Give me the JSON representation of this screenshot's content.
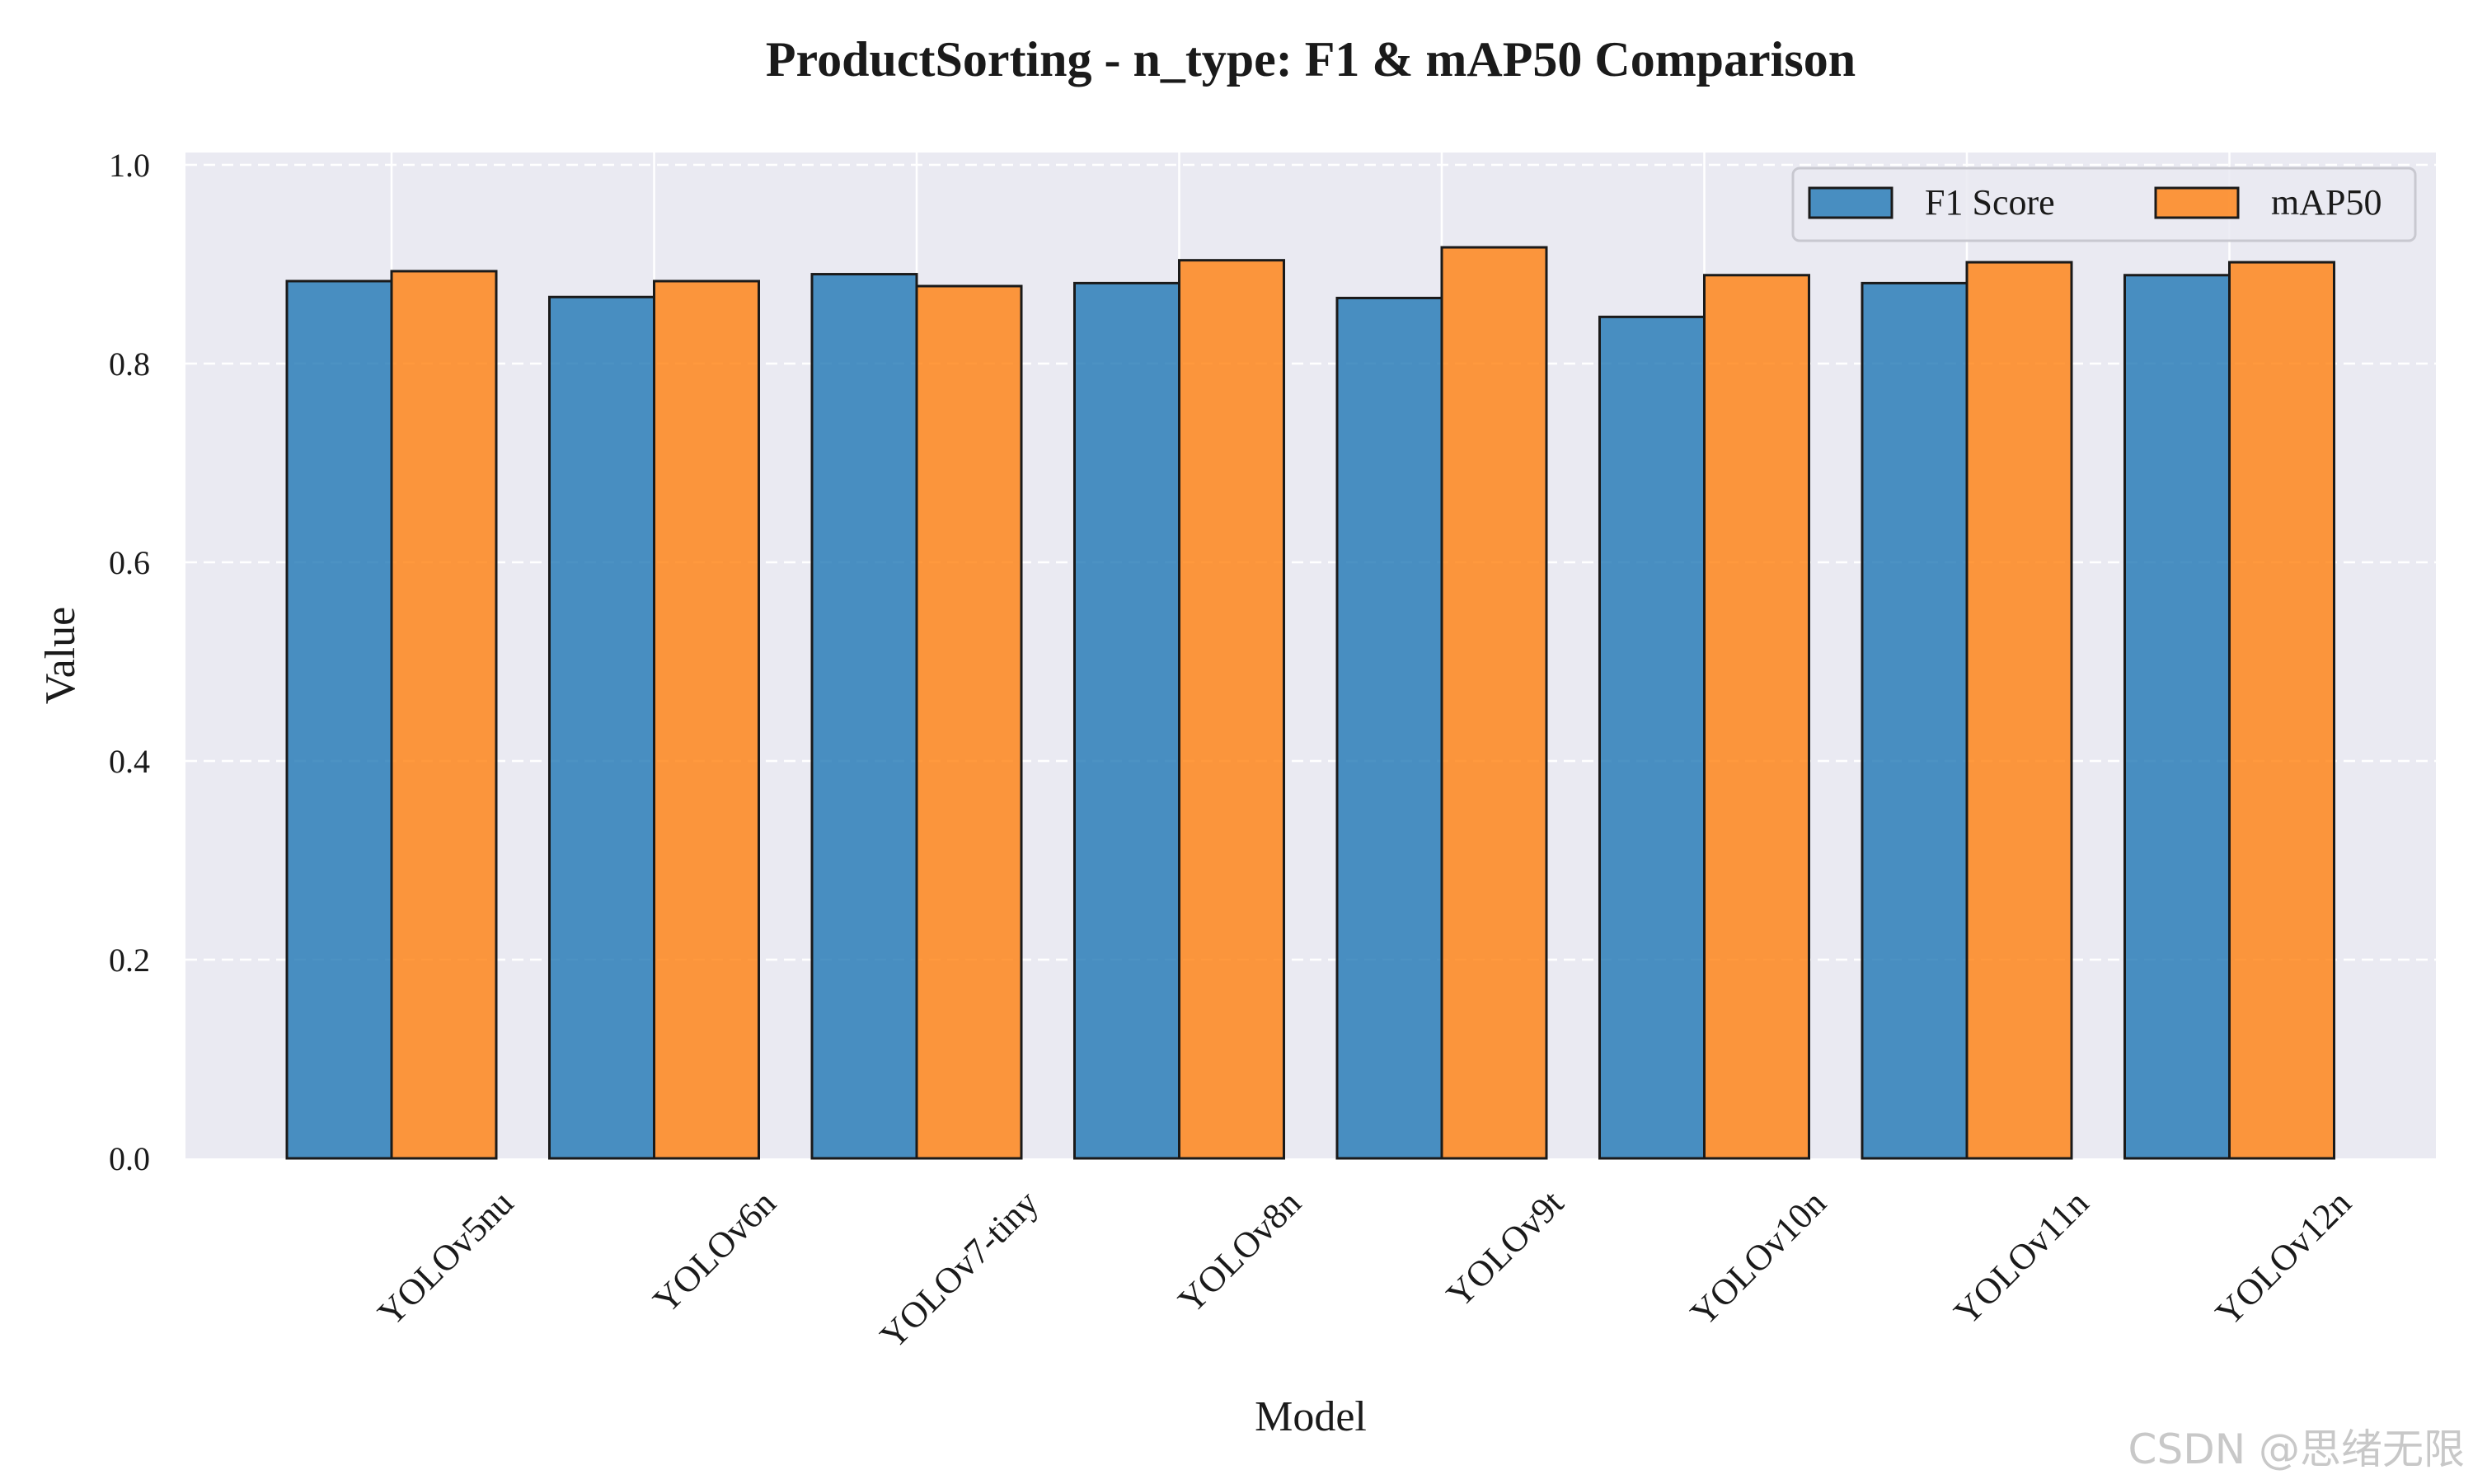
{
  "chart_data": {
    "type": "bar",
    "title": "ProductSorting - n_type: F1 & mAP50 Comparison",
    "xlabel": "Model",
    "ylabel": "Value",
    "ylim": [
      0,
      1.0
    ],
    "yticks": [
      "0.0",
      "0.2",
      "0.4",
      "0.6",
      "0.8",
      "1.0"
    ],
    "categories": [
      "YOLOv5nu",
      "YOLOv6n",
      "YOLOv7-tiny",
      "YOLOv8n",
      "YOLOv9t",
      "YOLOv10n",
      "YOLOv11n",
      "YOLOv12n"
    ],
    "series": [
      {
        "name": "F1 Score",
        "color": "#1f77b4",
        "values": [
          0.883,
          0.867,
          0.89,
          0.881,
          0.866,
          0.847,
          0.881,
          0.889
        ]
      },
      {
        "name": "mAP50",
        "color": "#ff7f0e",
        "values": [
          0.893,
          0.883,
          0.878,
          0.904,
          0.917,
          0.889,
          0.902,
          0.902
        ]
      }
    ],
    "grid": true,
    "legend_position": "top-right",
    "background_color": "#eaeaf2"
  },
  "watermark": {
    "text": "CSDN @思绪无限"
  }
}
